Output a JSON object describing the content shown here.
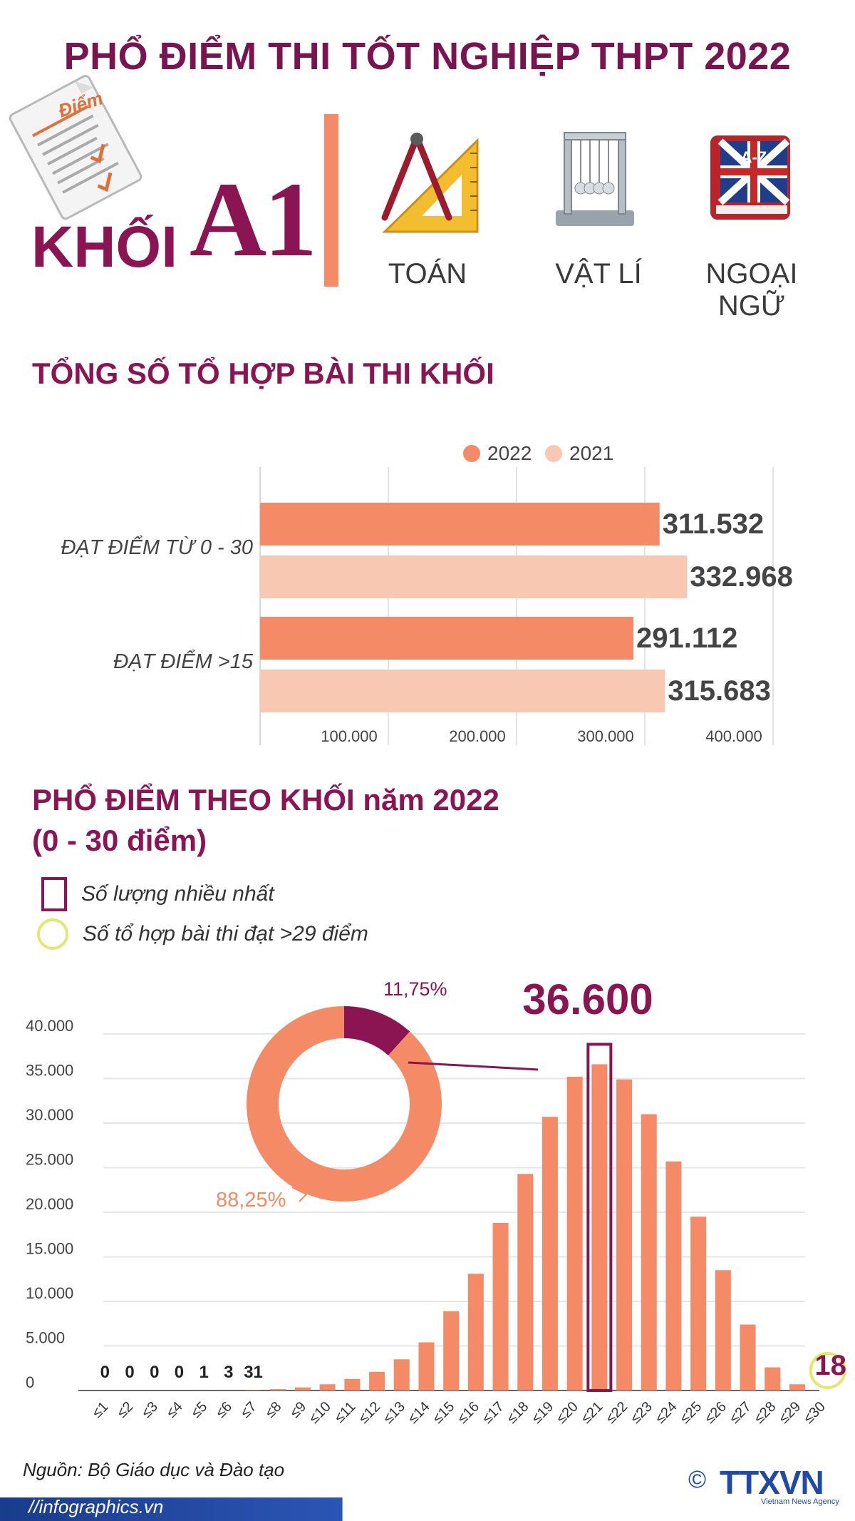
{
  "header": {
    "title": "PHỔ ĐIỂM THI TỐT NGHIỆP THPT 2022",
    "khoi_word": "KHỐI",
    "khoi_code": "A1",
    "doc_label": "Điểm",
    "subjects": [
      "TOÁN",
      "VẬT LÍ",
      "NGOẠI NGỮ"
    ],
    "book_label": "A-Z"
  },
  "colors": {
    "accent": "#8b1552",
    "orange": "#f58a66",
    "peach": "#f9c8b3",
    "highlight_circle": "#e3e76b"
  },
  "section1": {
    "title": "TỔNG SỐ TỔ HỢP BÀI THI KHỐI"
  },
  "section2": {
    "title_line1": "PHỔ ĐIỂM THEO KHỐI năm 2022",
    "title_line2": "(0 - 30 điểm)",
    "legend_max": "Số lượng nhiều nhất",
    "legend_29": "Số tổ hợp bài thi đạt >29 điểm"
  },
  "chart_data": [
    {
      "type": "bar",
      "orientation": "horizontal",
      "categories": [
        "ĐẠT ĐIỂM TỪ 0 - 30",
        "ĐẠT ĐIỂM >15"
      ],
      "series": [
        {
          "name": "2022",
          "values": [
            311532,
            291112
          ],
          "labels": [
            "311.532",
            "291.112"
          ],
          "color": "#f58a66"
        },
        {
          "name": "2021",
          "values": [
            332968,
            315683
          ],
          "labels": [
            "332.968",
            "315.683"
          ],
          "color": "#f9c8b3"
        }
      ],
      "xlim": [
        0,
        400000
      ],
      "xticks": [
        100000,
        200000,
        300000,
        400000
      ],
      "xtick_labels": [
        "100.000",
        "200.000",
        "300.000",
        "400.000"
      ],
      "legend_position": "top",
      "grid": true
    },
    {
      "type": "bar",
      "categories": [
        "≤1",
        "≤2",
        "≤3",
        "≤4",
        "≤5",
        "≤6",
        "≤7",
        "≤8",
        "≤9",
        "≤10",
        "≤11",
        "≤12",
        "≤13",
        "≤14",
        "≤15",
        "≤16",
        "≤17",
        "≤18",
        "≤19",
        "≤20",
        "≤21",
        "≤22",
        "≤23",
        "≤24",
        "≤25",
        "≤26",
        "≤27",
        "≤28",
        "≤29",
        "≤30"
      ],
      "values": [
        0,
        0,
        0,
        0,
        1,
        3,
        31,
        150,
        350,
        700,
        1300,
        2100,
        3500,
        5400,
        8900,
        13100,
        18800,
        24300,
        30700,
        35200,
        36600,
        34900,
        31000,
        25700,
        19500,
        13500,
        7400,
        2600,
        700,
        18
      ],
      "small_labels": [
        "0",
        "0",
        "0",
        "0",
        "1",
        "3",
        "31"
      ],
      "max_label": "36.600",
      "max_index": 20,
      "last_label": "18",
      "last_index": 29,
      "ylim": [
        0,
        40000
      ],
      "yticks": [
        0,
        5000,
        10000,
        15000,
        20000,
        25000,
        30000,
        35000,
        40000
      ],
      "ytick_labels": [
        "0",
        "5.000",
        "10.000",
        "15.000",
        "20.000",
        "25.000",
        "30.000",
        "35.000",
        "40.000"
      ],
      "grid": true
    },
    {
      "type": "pie",
      "style": "donut",
      "values": [
        11.75,
        88.25
      ],
      "labels": [
        "11,75%",
        "88,25%"
      ],
      "colors": [
        "#8b1552",
        "#f58a66"
      ]
    }
  ],
  "footer": {
    "source": "Nguồn: Bộ Giáo dục và Đào tạo",
    "url": "//infographics.vn",
    "copyright": "©",
    "logo": "TTXVN",
    "logo_sub": "Vietnam News Agency"
  }
}
